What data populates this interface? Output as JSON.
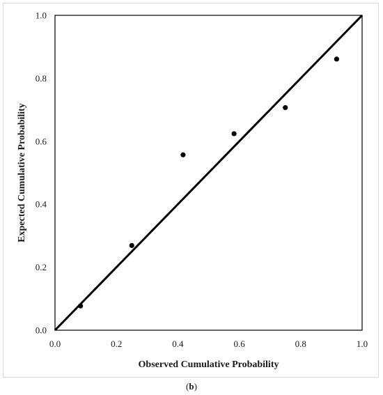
{
  "chart_data": {
    "type": "scatter",
    "title": "",
    "xlabel": "Observed Cumulative Probability",
    "ylabel": "Expected Cumulative Probability",
    "xlim": [
      0.0,
      1.0
    ],
    "ylim": [
      0.0,
      1.0
    ],
    "xticks": [
      "0.0",
      "0.2",
      "0.4",
      "0.6",
      "0.8",
      "1.0"
    ],
    "yticks": [
      "0.0",
      "0.2",
      "0.4",
      "0.6",
      "0.8",
      "1.0"
    ],
    "grid": false,
    "legend": "none",
    "points": [
      {
        "x": 0.083,
        "y": 0.077
      },
      {
        "x": 0.25,
        "y": 0.269
      },
      {
        "x": 0.417,
        "y": 0.557
      },
      {
        "x": 0.583,
        "y": 0.624
      },
      {
        "x": 0.75,
        "y": 0.707
      },
      {
        "x": 0.917,
        "y": 0.861
      }
    ],
    "reference_line": {
      "x": [
        0.0,
        1.0
      ],
      "y": [
        0.0,
        1.0
      ]
    },
    "marker_color": "#000000",
    "line_color": "#000000"
  },
  "caption": {
    "open": "(",
    "label": "b",
    "close": ")"
  }
}
